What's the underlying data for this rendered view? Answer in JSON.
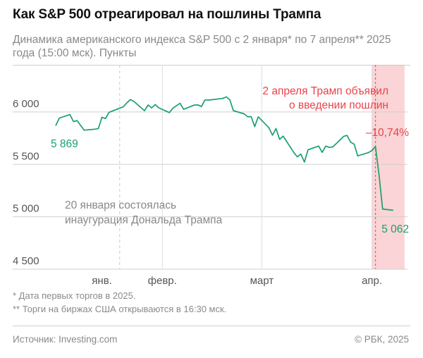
{
  "header": {
    "title": "Как S&P 500 отреагировал на пошлины Трампа",
    "subtitle": "Динамика американского индекса S&P 500 с 2 января* по 7 апреля** 2025 года (15:00 мск). Пункты"
  },
  "chart_data": {
    "type": "line",
    "title": "Как S&P 500 отреагировал на пошлины Трампа",
    "xlabel": "",
    "ylabel": "",
    "ylim": [
      4500,
      6450
    ],
    "y_ticks": [
      4500,
      5000,
      5500,
      6000
    ],
    "y_tick_labels": [
      "4 500",
      "5 000",
      "5 500",
      "6 000"
    ],
    "x_tick_labels": [
      "янв.",
      "февр.",
      "март",
      "апр."
    ],
    "x_tick_dates": [
      "2025-01-15",
      "2025-02-01",
      "2025-03-01",
      "2025-04-01"
    ],
    "grid": "horizontal",
    "color": "#1aa06f",
    "highlight_color": "#f4a0a4",
    "series": [
      {
        "x": [
          "2025-01-02",
          "2025-01-03",
          "2025-01-06",
          "2025-01-07",
          "2025-01-08",
          "2025-01-10",
          "2025-01-13",
          "2025-01-14",
          "2025-01-15",
          "2025-01-16",
          "2025-01-17",
          "2025-01-21",
          "2025-01-22",
          "2025-01-23",
          "2025-01-24",
          "2025-01-27",
          "2025-01-28",
          "2025-01-29",
          "2025-01-30",
          "2025-01-31",
          "2025-02-03",
          "2025-02-04",
          "2025-02-05",
          "2025-02-06",
          "2025-02-07",
          "2025-02-10",
          "2025-02-11",
          "2025-02-12",
          "2025-02-13",
          "2025-02-14",
          "2025-02-18",
          "2025-02-19",
          "2025-02-20",
          "2025-02-21",
          "2025-02-24",
          "2025-02-25",
          "2025-02-26",
          "2025-02-27",
          "2025-02-28",
          "2025-03-03",
          "2025-03-04",
          "2025-03-05",
          "2025-03-06",
          "2025-03-07",
          "2025-03-10",
          "2025-03-11",
          "2025-03-12",
          "2025-03-13",
          "2025-03-14",
          "2025-03-17",
          "2025-03-18",
          "2025-03-19",
          "2025-03-20",
          "2025-03-21",
          "2025-03-24",
          "2025-03-25",
          "2025-03-26",
          "2025-03-27",
          "2025-03-28",
          "2025-03-31",
          "2025-04-01",
          "2025-04-02",
          "2025-04-03",
          "2025-04-04",
          "2025-04-07"
        ],
        "y": [
          5869,
          5942,
          5975,
          5909,
          5918,
          5827,
          5836,
          5842,
          5950,
          5937,
          5997,
          6049,
          6086,
          6119,
          6101,
          6012,
          6067,
          6039,
          6071,
          6040,
          5994,
          6037,
          6061,
          6083,
          6026,
          6066,
          6068,
          6052,
          6115,
          6114,
          6129,
          6144,
          6117,
          6013,
          5983,
          5955,
          5956,
          5861,
          5954,
          5850,
          5778,
          5842,
          5739,
          5770,
          5614,
          5572,
          5599,
          5522,
          5639,
          5675,
          5615,
          5675,
          5662,
          5667,
          5767,
          5777,
          5712,
          5693,
          5581,
          5612,
          5633,
          5671,
          5396,
          5074,
          5062
        ]
      }
    ],
    "annotations": {
      "tariff_text_line1": "2 апреля Трамп объявил",
      "tariff_text_line2": "о введении пошлин",
      "tariff_date": "2025-04-02",
      "change_label": "–10,74%",
      "start_label": "5 869",
      "end_label": "5 062",
      "inauguration_text_line1": "20 января состоялась",
      "inauguration_text_line2": "инаугурация Дональда Трампа",
      "inauguration_date": "2025-01-20"
    }
  },
  "notes": {
    "note1": "* Дата первых торгов в 2025.",
    "note2": "** Торги на биржах США открываются в 16:30 мск."
  },
  "footer": {
    "source": "Источник: Investing.com",
    "copyright": "© РБК, 2025"
  }
}
